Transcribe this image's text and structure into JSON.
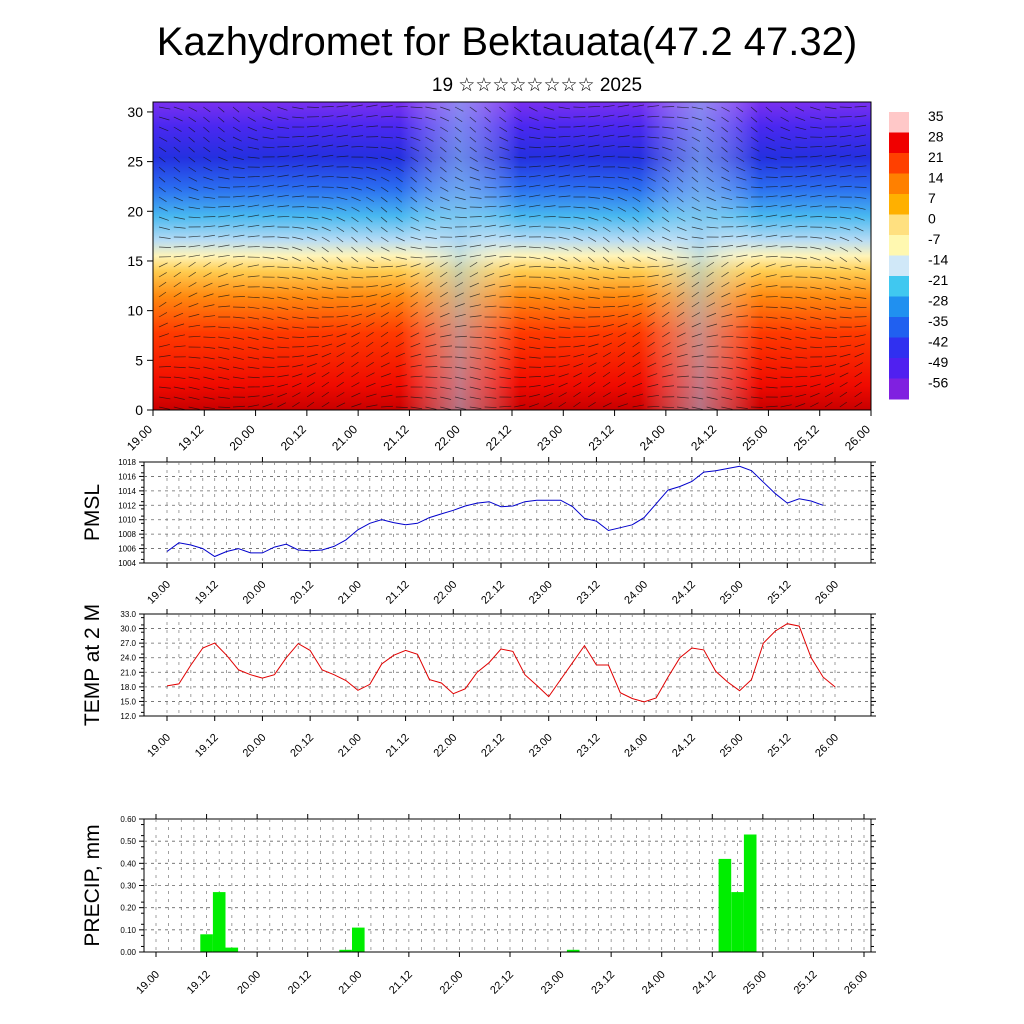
{
  "title": "Kazhydromet for Bektauata(47.2 47.32)",
  "subtitle": "19 ☆☆☆☆☆☆☆☆ 2025",
  "time_ticks": [
    "19.00",
    "19.12",
    "20.00",
    "20.12",
    "21.00",
    "21.12",
    "22.00",
    "22.12",
    "23.00",
    "23.12",
    "24.00",
    "24.12",
    "25.00",
    "25.12",
    "26.00"
  ],
  "chart_data": [
    {
      "type": "heatmap",
      "ylim": [
        0,
        31
      ],
      "y_ticks": [
        0,
        5,
        10,
        15,
        20,
        25,
        30
      ],
      "colorbar": {
        "labels": [
          35,
          28,
          21,
          14,
          7,
          0,
          -7,
          -14,
          -21,
          -28,
          -35,
          -42,
          -49,
          -56
        ],
        "colors": [
          "#ffc8c8",
          "#f00000",
          "#ff4000",
          "#ff8000",
          "#ffb000",
          "#ffe080",
          "#fff8b0",
          "#d0e8f8",
          "#40c8f0",
          "#2090f0",
          "#2060f0",
          "#3030f0",
          "#5020f0",
          "#8020e0"
        ]
      }
    },
    {
      "type": "line",
      "ylabel": "PMSL",
      "ylim": [
        1004,
        1018
      ],
      "y_ticks": [
        "1004",
        "1006",
        "1008",
        "1010",
        "1012",
        "1014",
        "1016",
        "1018"
      ],
      "color": "#0000cc",
      "y": [
        1005.6,
        1006.8,
        1006.5,
        1006.0,
        1004.9,
        1005.6,
        1006.0,
        1005.4,
        1005.4,
        1006.2,
        1006.6,
        1005.8,
        1005.7,
        1005.8,
        1006.3,
        1007.2,
        1008.6,
        1009.5,
        1010.0,
        1009.6,
        1009.3,
        1009.5,
        1010.3,
        1010.8,
        1011.3,
        1011.9,
        1012.3,
        1012.5,
        1011.8,
        1011.9,
        1012.5,
        1012.7,
        1012.7,
        1012.7,
        1011.8,
        1010.2,
        1009.8,
        1008.5,
        1008.9,
        1009.3,
        1010.3,
        1012.2,
        1014.1,
        1014.6,
        1015.3,
        1016.6,
        1016.8,
        1017.1,
        1017.4,
        1016.8,
        1015.2,
        1013.6,
        1012.3,
        1012.9,
        1012.6,
        1012.0
      ]
    },
    {
      "type": "line",
      "ylabel": "TEMP at 2 M",
      "ylim": [
        12,
        33
      ],
      "y_ticks": [
        "12.0",
        "15.0",
        "18.0",
        "21.0",
        "24.0",
        "27.0",
        "30.0",
        "33.0"
      ],
      "color": "#e00000",
      "y": [
        18.2,
        18.6,
        22.5,
        26.0,
        27.0,
        24.5,
        21.5,
        20.5,
        19.8,
        20.5,
        24.0,
        26.9,
        25.5,
        21.5,
        20.5,
        19.3,
        17.3,
        18.5,
        22.7,
        24.5,
        25.5,
        24.7,
        19.5,
        18.8,
        16.6,
        17.6,
        21.0,
        23.0,
        25.8,
        25.3,
        20.5,
        18.3,
        16.0,
        19.5,
        23.0,
        26.5,
        22.5,
        22.5,
        16.8,
        15.6,
        14.9,
        15.7,
        20.0,
        24.0,
        26.0,
        25.6,
        21.2,
        19.0,
        17.2,
        19.5,
        27.0,
        29.5,
        31.0,
        30.5,
        24.0,
        20.0,
        18.0
      ]
    },
    {
      "type": "bar",
      "ylabel": "PRECIP, mm",
      "ylim": [
        0,
        0.6
      ],
      "y_ticks": [
        "0.00",
        "0.10",
        "0.20",
        "0.30",
        "0.40",
        "0.50",
        "0.60"
      ],
      "color": "#00ee00",
      "x": [
        4,
        5,
        6,
        15,
        16,
        33,
        45,
        46,
        47
      ],
      "y": [
        0.08,
        0.27,
        0.02,
        0.01,
        0.11,
        0.01,
        0.42,
        0.27,
        0.53
      ]
    }
  ]
}
